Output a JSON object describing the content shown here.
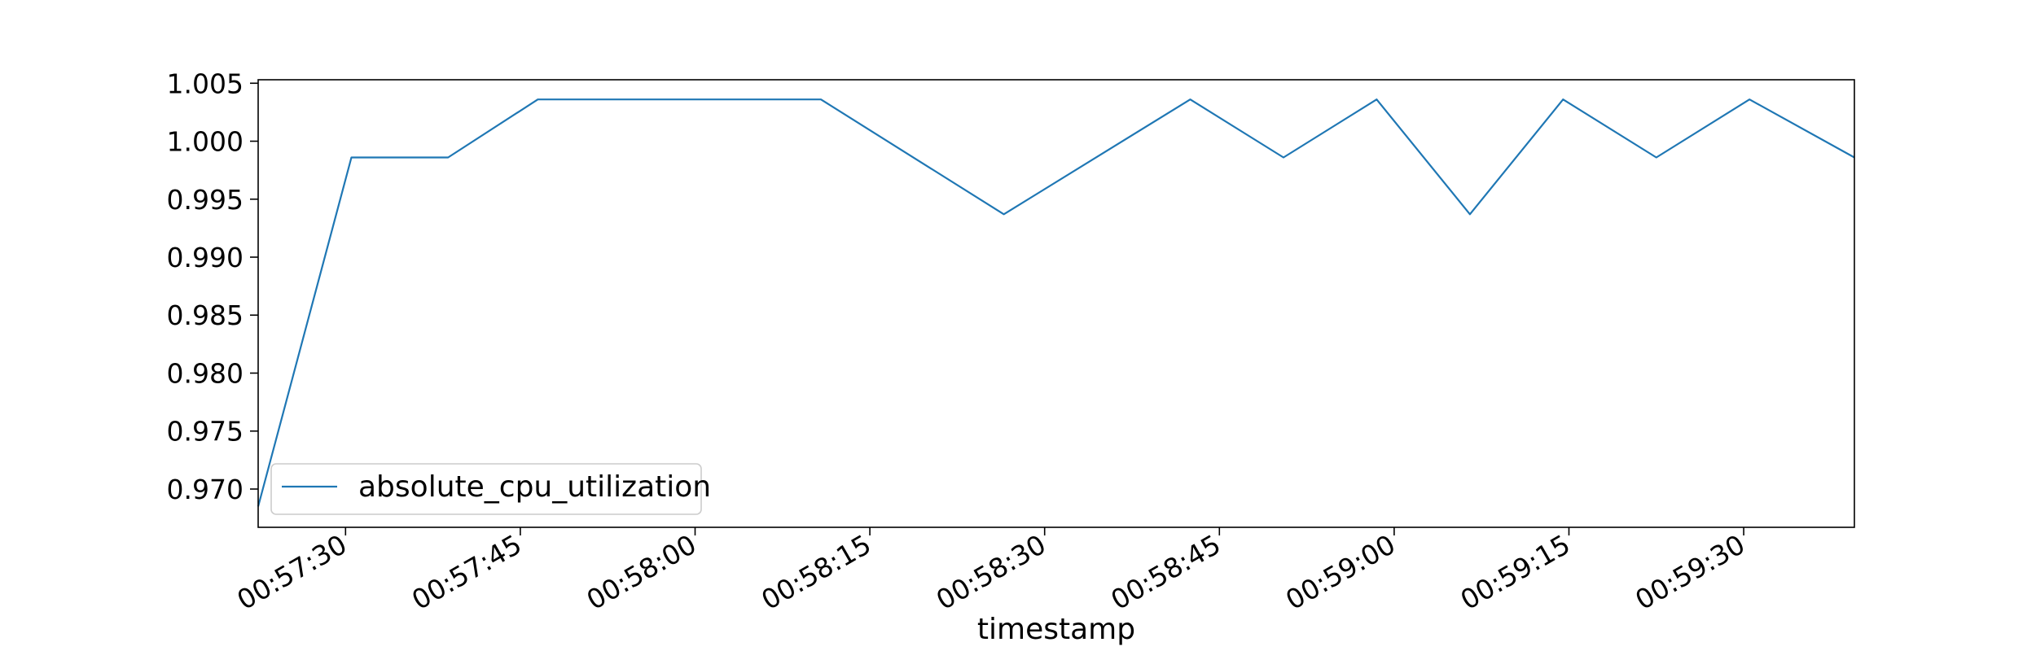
{
  "chart_data": {
    "type": "line",
    "title": "",
    "xlabel": "timestamp",
    "ylabel": "",
    "x_tick_labels": [
      "00:57:30",
      "00:57:45",
      "00:58:00",
      "00:58:15",
      "00:58:30",
      "00:58:45",
      "00:59:00",
      "00:59:15",
      "00:59:30"
    ],
    "x_tick_seconds": [
      0,
      15,
      30,
      45,
      60,
      75,
      90,
      105,
      120
    ],
    "xlim_seconds": [
      -7.5,
      129.5
    ],
    "y_tick_labels": [
      "0.970",
      "0.975",
      "0.980",
      "0.985",
      "0.990",
      "0.995",
      "1.000",
      "1.005"
    ],
    "y_ticks": [
      0.97,
      0.975,
      0.98,
      0.985,
      0.99,
      0.995,
      1.0,
      1.005
    ],
    "ylim": [
      0.9667,
      1.0053
    ],
    "grid": false,
    "legend_position": "lower-left",
    "series": [
      {
        "name": "absolute_cpu_utilization",
        "color": "#1f77b4",
        "x_seconds": [
          -7.5,
          0.5,
          8.8,
          16.5,
          32.5,
          40.8,
          56.5,
          72.5,
          80.5,
          88.5,
          96.5,
          104.5,
          112.5,
          120.5,
          129.5
        ],
        "values": [
          0.9685,
          0.9986,
          0.9986,
          1.0036,
          1.0036,
          1.0036,
          0.9937,
          1.0036,
          0.9986,
          1.0036,
          0.9937,
          1.0036,
          0.9986,
          1.0036,
          0.9986
        ]
      }
    ]
  }
}
